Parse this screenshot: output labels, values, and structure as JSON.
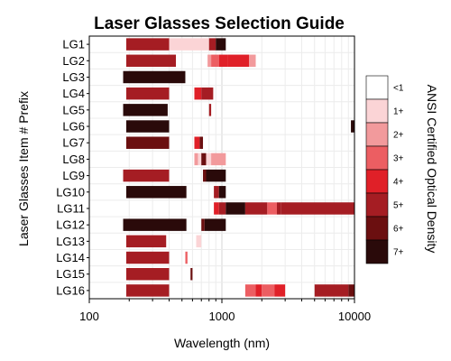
{
  "chart_data": {
    "type": "heatmap",
    "title": "Laser Glasses Selection Guide",
    "xlabel": "Wavelength (nm)",
    "ylabel": "Laser Glasses Item # Prefix",
    "xscale": "log",
    "xlim": [
      100,
      10000
    ],
    "x_ticks": [
      100,
      1000,
      10000
    ],
    "x_tick_labels": [
      "100",
      "1000",
      "10000"
    ],
    "grid": true,
    "legend": {
      "title": "ANSI Certified Optical Density",
      "position": "right",
      "levels": [
        "<1",
        "1+",
        "2+",
        "3+",
        "4+",
        "5+",
        "6+",
        "7+"
      ],
      "colors": [
        "#ffffff",
        "#fbd4d6",
        "#f29a9c",
        "#ec5e62",
        "#e02028",
        "#a51d23",
        "#6b0f10",
        "#2a0a0a"
      ]
    },
    "categories": [
      "LG1",
      "LG2",
      "LG3",
      "LG4",
      "LG5",
      "LG6",
      "LG7",
      "LG8",
      "LG9",
      "LG10",
      "LG11",
      "LG12",
      "LG13",
      "LG14",
      "LG15",
      "LG16"
    ],
    "rows": [
      {
        "label": "LG1",
        "segments": [
          {
            "start": 190,
            "end": 400,
            "od": 5
          },
          {
            "start": 400,
            "end": 800,
            "od": 1
          },
          {
            "start": 800,
            "end": 900,
            "od": 5
          },
          {
            "start": 900,
            "end": 1070,
            "od": 7
          }
        ]
      },
      {
        "label": "LG2",
        "segments": [
          {
            "start": 190,
            "end": 450,
            "od": 5
          },
          {
            "start": 780,
            "end": 830,
            "od": 2
          },
          {
            "start": 830,
            "end": 950,
            "od": 3
          },
          {
            "start": 950,
            "end": 1100,
            "od": 4
          },
          {
            "start": 1100,
            "end": 1600,
            "od": 4
          },
          {
            "start": 1600,
            "end": 1800,
            "od": 2
          }
        ]
      },
      {
        "label": "LG3",
        "segments": [
          {
            "start": 180,
            "end": 530,
            "od": 7
          }
        ]
      },
      {
        "label": "LG4",
        "segments": [
          {
            "start": 190,
            "end": 400,
            "od": 5
          },
          {
            "start": 620,
            "end": 700,
            "od": 4
          },
          {
            "start": 700,
            "end": 860,
            "od": 5
          }
        ]
      },
      {
        "label": "LG5",
        "segments": [
          {
            "start": 180,
            "end": 390,
            "od": 7
          },
          {
            "start": 800,
            "end": 830,
            "od": 5
          }
        ]
      },
      {
        "label": "LG6",
        "segments": [
          {
            "start": 190,
            "end": 400,
            "od": 7
          },
          {
            "start": 9400,
            "end": 10000,
            "od": 7
          }
        ]
      },
      {
        "label": "LG7",
        "segments": [
          {
            "start": 190,
            "end": 400,
            "od": 6
          },
          {
            "start": 620,
            "end": 680,
            "od": 4
          },
          {
            "start": 680,
            "end": 720,
            "od": 6
          }
        ]
      },
      {
        "label": "LG8",
        "segments": [
          {
            "start": 620,
            "end": 660,
            "od": 2
          },
          {
            "start": 660,
            "end": 700,
            "od": 1
          },
          {
            "start": 700,
            "end": 760,
            "od": 6
          },
          {
            "start": 760,
            "end": 830,
            "od": 1
          },
          {
            "start": 830,
            "end": 1070,
            "od": 2
          }
        ]
      },
      {
        "label": "LG9",
        "segments": [
          {
            "start": 180,
            "end": 400,
            "od": 5
          },
          {
            "start": 720,
            "end": 760,
            "od": 6
          },
          {
            "start": 760,
            "end": 1070,
            "od": 7
          }
        ]
      },
      {
        "label": "LG10",
        "segments": [
          {
            "start": 190,
            "end": 540,
            "od": 7
          },
          {
            "start": 870,
            "end": 950,
            "od": 5
          },
          {
            "start": 950,
            "end": 1070,
            "od": 7
          }
        ]
      },
      {
        "label": "LG11",
        "segments": [
          {
            "start": 870,
            "end": 950,
            "od": 4
          },
          {
            "start": 950,
            "end": 1070,
            "od": 5
          },
          {
            "start": 1070,
            "end": 1500,
            "od": 7
          },
          {
            "start": 1500,
            "end": 2200,
            "od": 5
          },
          {
            "start": 2200,
            "end": 2600,
            "od": 3
          },
          {
            "start": 2600,
            "end": 2800,
            "od": 5
          },
          {
            "start": 2800,
            "end": 10000,
            "od": 5
          }
        ]
      },
      {
        "label": "LG12",
        "segments": [
          {
            "start": 180,
            "end": 540,
            "od": 7
          },
          {
            "start": 700,
            "end": 740,
            "od": 6
          },
          {
            "start": 740,
            "end": 1070,
            "od": 7
          }
        ]
      },
      {
        "label": "LG13",
        "segments": [
          {
            "start": 190,
            "end": 380,
            "od": 5
          },
          {
            "start": 640,
            "end": 700,
            "od": 1
          }
        ]
      },
      {
        "label": "LG14",
        "segments": [
          {
            "start": 190,
            "end": 400,
            "od": 5
          },
          {
            "start": 530,
            "end": 550,
            "od": 3
          }
        ]
      },
      {
        "label": "LG15",
        "segments": [
          {
            "start": 190,
            "end": 400,
            "od": 5
          },
          {
            "start": 580,
            "end": 600,
            "od": 6
          }
        ]
      },
      {
        "label": "LG16",
        "segments": [
          {
            "start": 190,
            "end": 400,
            "od": 5
          },
          {
            "start": 1500,
            "end": 1800,
            "od": 3
          },
          {
            "start": 1800,
            "end": 2000,
            "od": 4
          },
          {
            "start": 2000,
            "end": 2500,
            "od": 3
          },
          {
            "start": 2500,
            "end": 3000,
            "od": 4
          },
          {
            "start": 5000,
            "end": 9000,
            "od": 5
          },
          {
            "start": 9000,
            "end": 10000,
            "od": 6
          }
        ]
      }
    ]
  }
}
